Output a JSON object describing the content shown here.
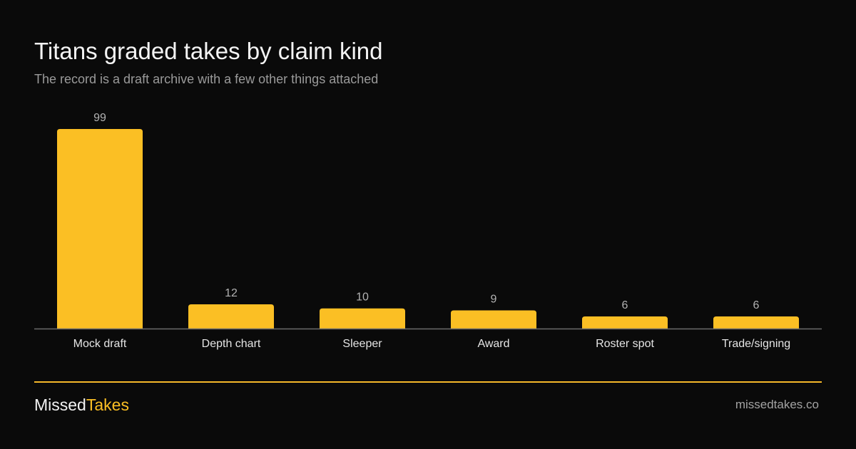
{
  "chart_data": {
    "type": "bar",
    "title": "Titans graded takes by claim kind",
    "subtitle": "The record is a draft archive with a few other things attached",
    "categories": [
      "Mock draft",
      "Depth chart",
      "Sleeper",
      "Award",
      "Roster spot",
      "Trade/signing"
    ],
    "values": [
      99,
      12,
      10,
      9,
      6,
      6
    ],
    "data_labels": [
      "99",
      "12",
      "10",
      "9",
      "6",
      "6"
    ],
    "ylim": [
      0,
      99
    ],
    "grid": false,
    "legend": "none",
    "bar_color": "#fbbf24"
  },
  "footer": {
    "brand_part1": "Missed",
    "brand_part2": "Takes",
    "site": "missedtakes.co"
  },
  "colors": {
    "background": "#0a0a0a",
    "accent": "#fbbf24",
    "axis": "#6b6b6b",
    "label": "#e5e5e5",
    "value_label": "#b3b3b3"
  }
}
